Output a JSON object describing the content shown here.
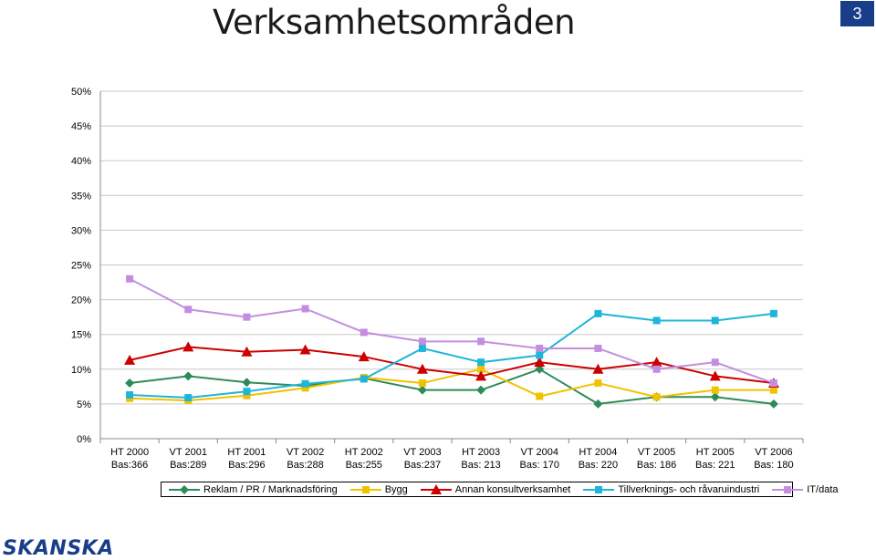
{
  "page": {
    "title": "Verksamhetsområden",
    "number": "3",
    "logo_text": "SKANSKA"
  },
  "chart_data": {
    "type": "line",
    "title": "",
    "xlabel": "",
    "ylabel": "",
    "ylim": [
      0,
      50
    ],
    "yticks": [
      "0%",
      "5%",
      "10%",
      "15%",
      "20%",
      "25%",
      "30%",
      "35%",
      "40%",
      "45%",
      "50%"
    ],
    "grid": true,
    "legend_position": "bottom",
    "categories": [
      [
        "HT 2000",
        "Bas:366"
      ],
      [
        "VT 2001",
        "Bas:289"
      ],
      [
        "HT 2001",
        "Bas:296"
      ],
      [
        "VT 2002",
        "Bas:288"
      ],
      [
        "HT 2002",
        "Bas:255"
      ],
      [
        "VT 2003",
        "Bas:237"
      ],
      [
        "HT 2003",
        "Bas: 213"
      ],
      [
        "VT 2004",
        "Bas: 170"
      ],
      [
        "HT 2004",
        "Bas: 220"
      ],
      [
        "VT 2005",
        "Bas: 186"
      ],
      [
        "HT 2005",
        "Bas: 221"
      ],
      [
        "VT 2006",
        "Bas: 180"
      ]
    ],
    "series": [
      {
        "name": "Reklam / PR / Marknadsföring",
        "color": "#2e8b57",
        "marker": "diamond",
        "values": [
          8,
          9,
          8.1,
          7.6,
          8.7,
          7,
          7,
          10,
          5,
          6,
          6,
          5
        ]
      },
      {
        "name": "Bygg",
        "color": "#f2c200",
        "marker": "square",
        "values": [
          5.8,
          5.5,
          6.2,
          7.3,
          8.8,
          8,
          10,
          6.1,
          8,
          6,
          7,
          7
        ]
      },
      {
        "name": "Annan konsultverksamhet",
        "color": "#cc0000",
        "marker": "triangle",
        "values": [
          11.3,
          13.2,
          12.5,
          12.8,
          11.8,
          10,
          9,
          11,
          10,
          11,
          9,
          8
        ]
      },
      {
        "name": "Tillverknings- och råvaruindustri",
        "color": "#1fb5d8",
        "marker": "square",
        "values": [
          6.3,
          5.9,
          6.8,
          7.9,
          8.6,
          13,
          11,
          12,
          18,
          17,
          17,
          18
        ]
      },
      {
        "name": "IT/data",
        "color": "#c48ee0",
        "marker": "square",
        "values": [
          23,
          18.6,
          17.5,
          18.7,
          15.3,
          14,
          14,
          13,
          13,
          10,
          11,
          8
        ]
      }
    ]
  }
}
